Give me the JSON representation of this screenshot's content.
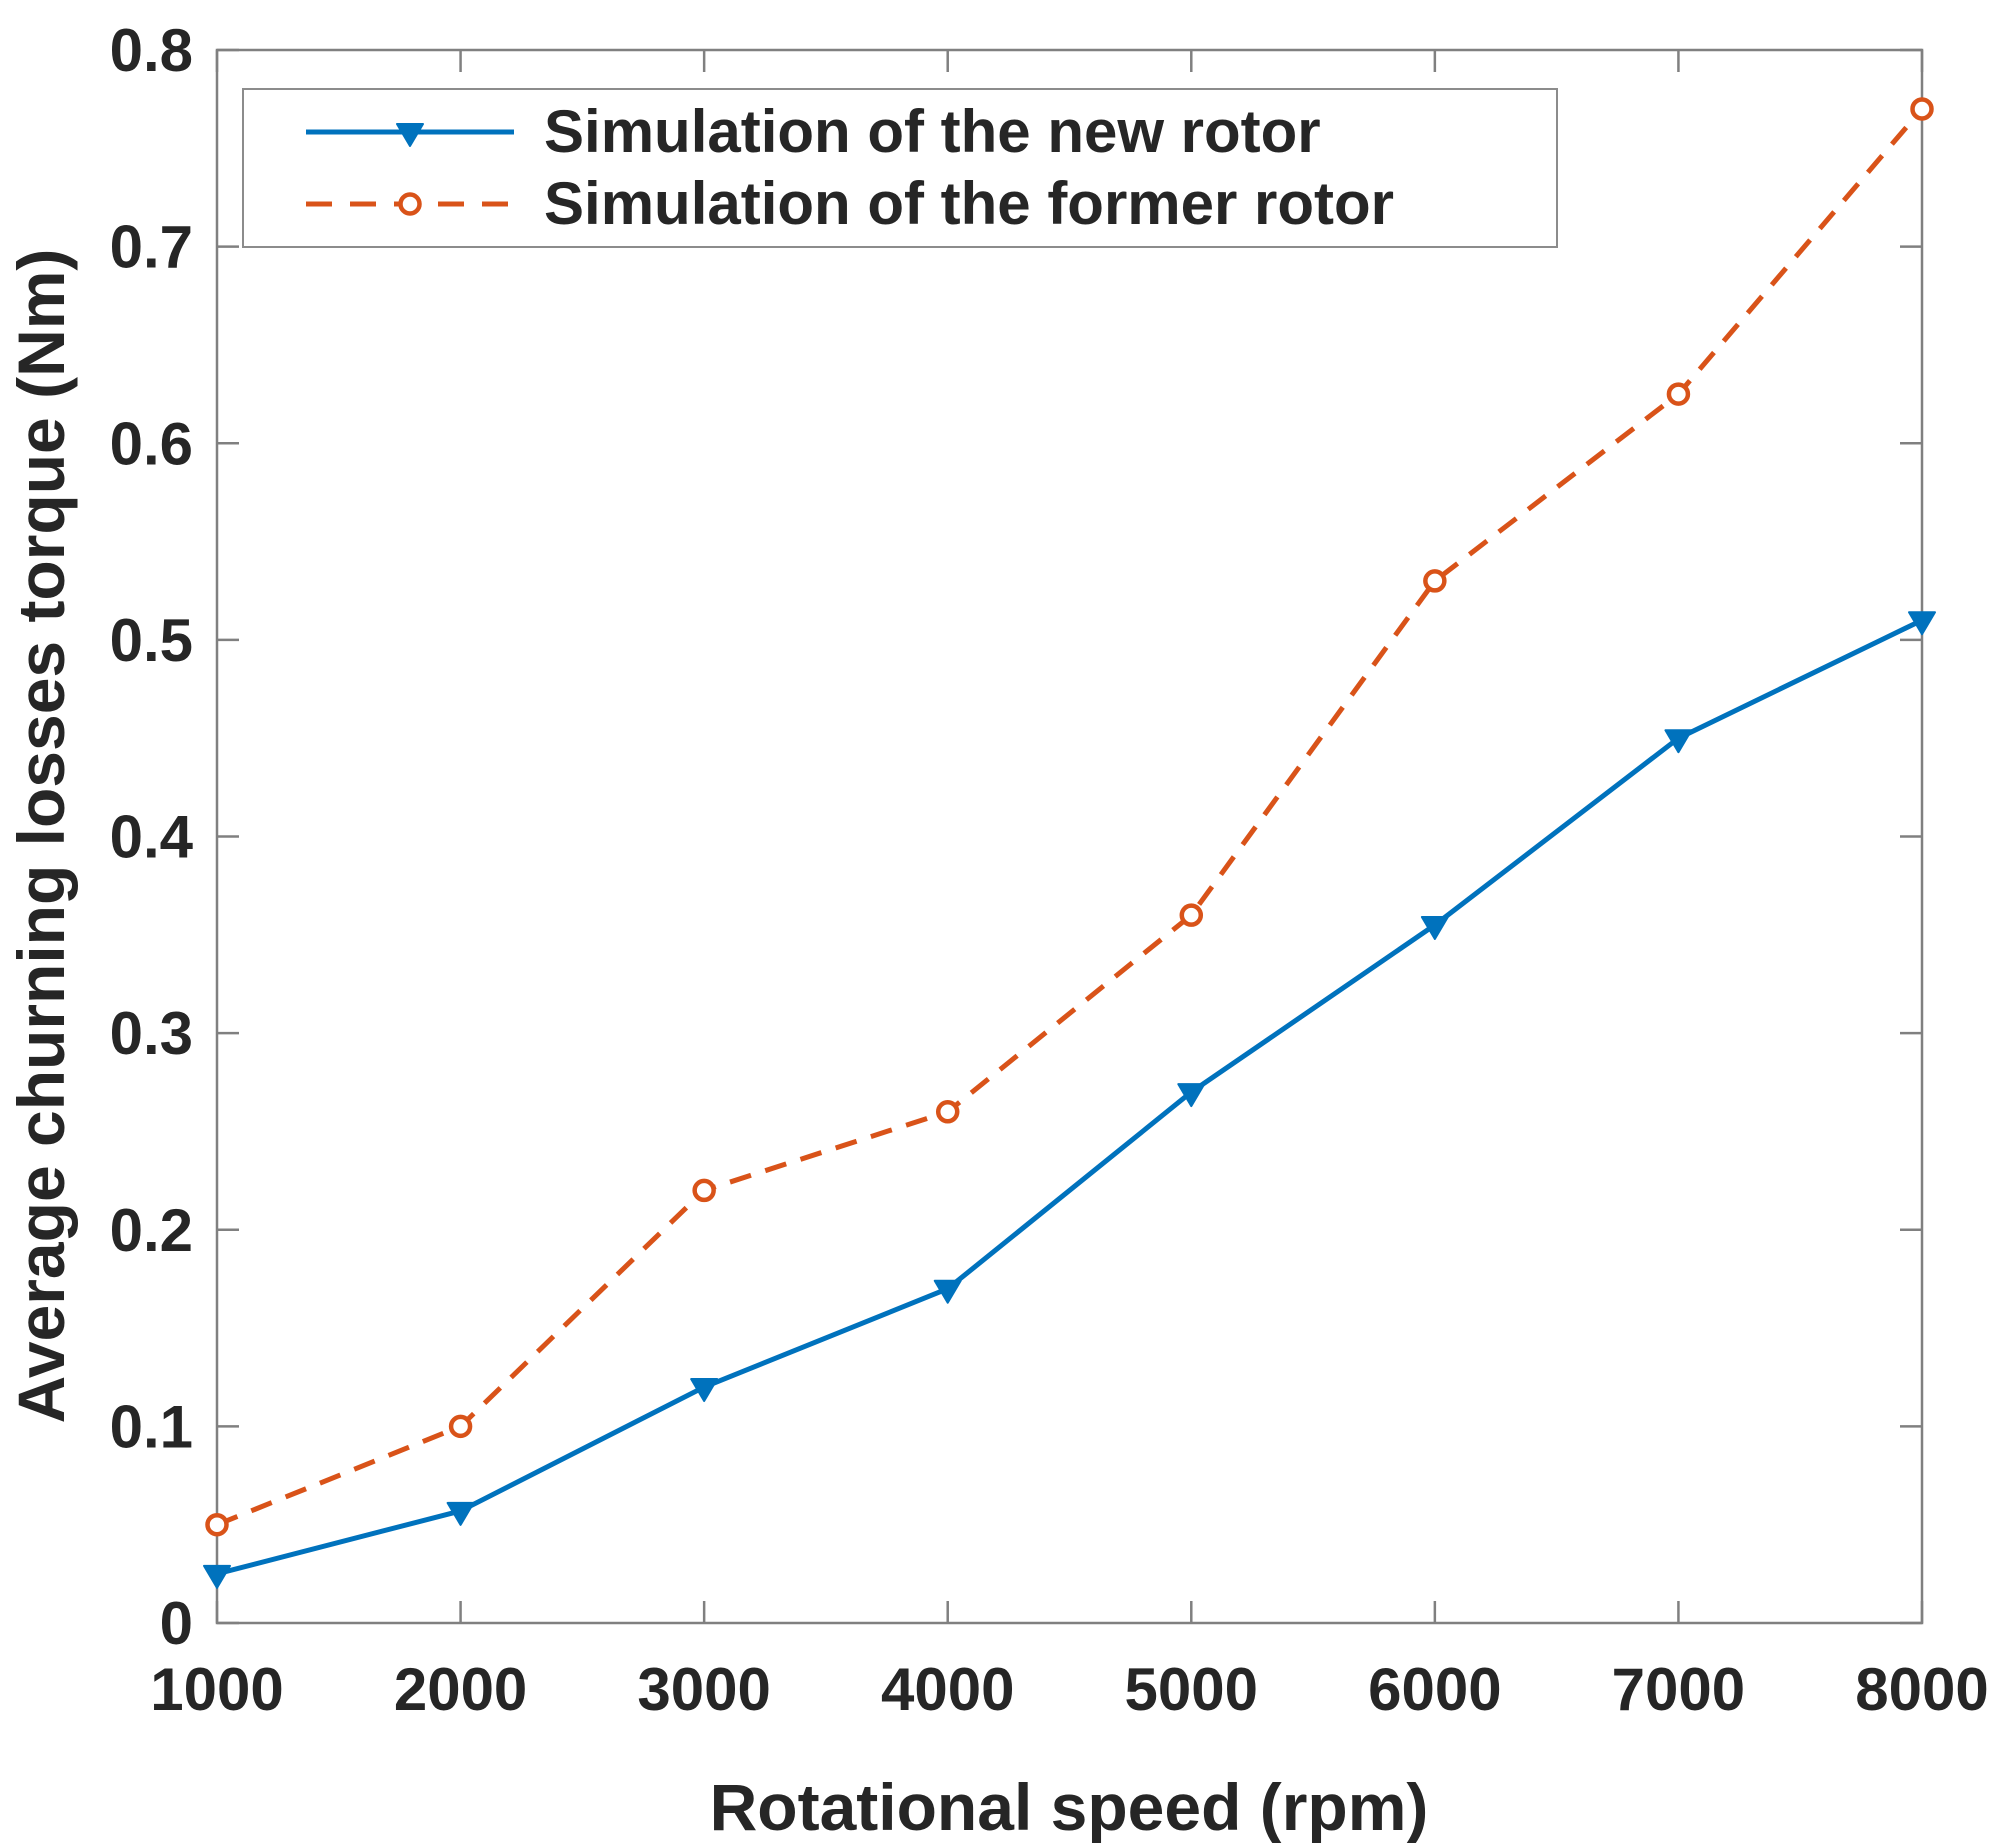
{
  "figure": {
    "background": "#ffffff"
  },
  "chart_data": {
    "type": "line",
    "title": "",
    "xlabel": "Rotational speed (rpm)",
    "ylabel": "Average churning losses torque (Nm)",
    "xlim": [
      1000,
      8000
    ],
    "ylim": [
      0,
      0.8
    ],
    "grid": false,
    "legend_position": "top-left",
    "axis_color": "#808080",
    "text_color": "#262626",
    "x": [
      1000,
      2000,
      3000,
      4000,
      5000,
      6000,
      7000,
      8000
    ],
    "xticks": {
      "values": [
        1000,
        2000,
        3000,
        4000,
        5000,
        6000,
        7000,
        8000
      ],
      "labels": [
        "1000",
        "2000",
        "3000",
        "4000",
        "5000",
        "6000",
        "7000",
        "8000"
      ]
    },
    "yticks": {
      "values": [
        0,
        0.1,
        0.2,
        0.3,
        0.4,
        0.5,
        0.6,
        0.7,
        0.8
      ],
      "labels": [
        "0",
        "0.1",
        "0.2",
        "0.3",
        "0.4",
        "0.5",
        "0.6",
        "0.7",
        "0.8"
      ]
    },
    "series": [
      {
        "name": "Simulation of the new rotor",
        "color": "#0072BD",
        "line_style": "solid",
        "marker": "triangle-down-filled",
        "values": [
          0.025,
          0.057,
          0.12,
          0.17,
          0.27,
          0.355,
          0.45,
          0.51
        ]
      },
      {
        "name": "Simulation of the former rotor",
        "color": "#D95319",
        "line_style": "dashed",
        "marker": "circle-open",
        "values": [
          0.05,
          0.1,
          0.22,
          0.26,
          0.36,
          0.53,
          0.625,
          0.77
        ]
      }
    ]
  }
}
